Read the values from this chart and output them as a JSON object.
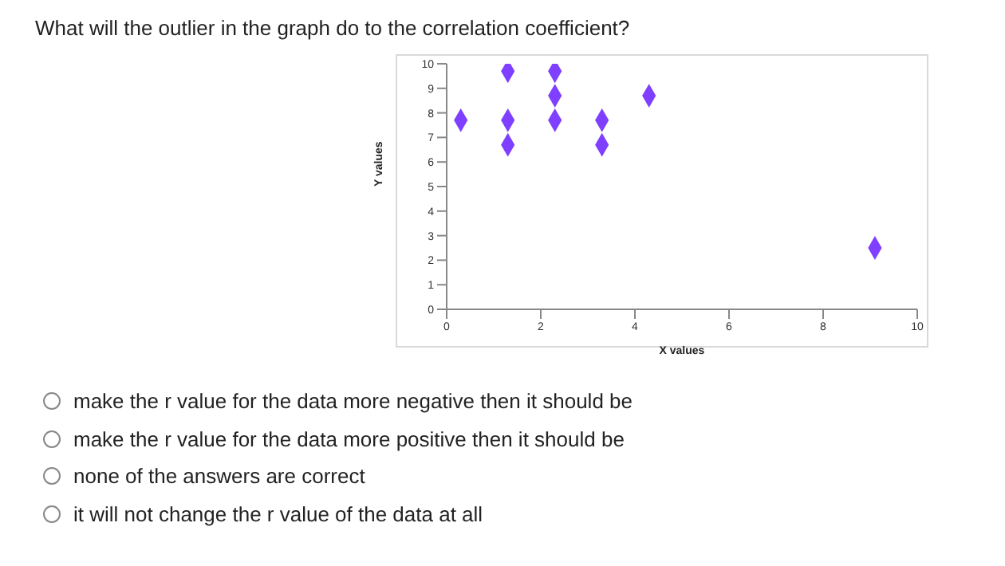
{
  "chart_data": {
    "type": "scatter",
    "title": "What will the outlier in the graph do to the correlation coefficient?",
    "xlabel": "X values",
    "ylabel": "Y values",
    "series": [
      {
        "color": "#7f3fff",
        "x": [
          0.3,
          1.3,
          1.3,
          1.3,
          2.3,
          2.3,
          2.3,
          3.3,
          3.3,
          4.3,
          9.1
        ],
        "values": [
          7.7,
          9.7,
          7.7,
          6.7,
          9.7,
          8.7,
          7.7,
          7.7,
          6.7,
          8.7,
          2.5
        ]
      }
    ],
    "xlim": [
      0,
      10
    ],
    "xticks": [
      0,
      2,
      4,
      6,
      8,
      10
    ],
    "ylim": [
      0,
      10
    ],
    "yticks": [
      0,
      1,
      2,
      3,
      4,
      5,
      6,
      7,
      8,
      9,
      10
    ],
    "grid": false,
    "legend": false,
    "marker": "diamond",
    "annotations": [
      "make the r value for the data more negative then it should be",
      "make the r value for the data more positive then it should be",
      "none of the answers are correct",
      "it will not change the r value of the data at all"
    ]
  }
}
